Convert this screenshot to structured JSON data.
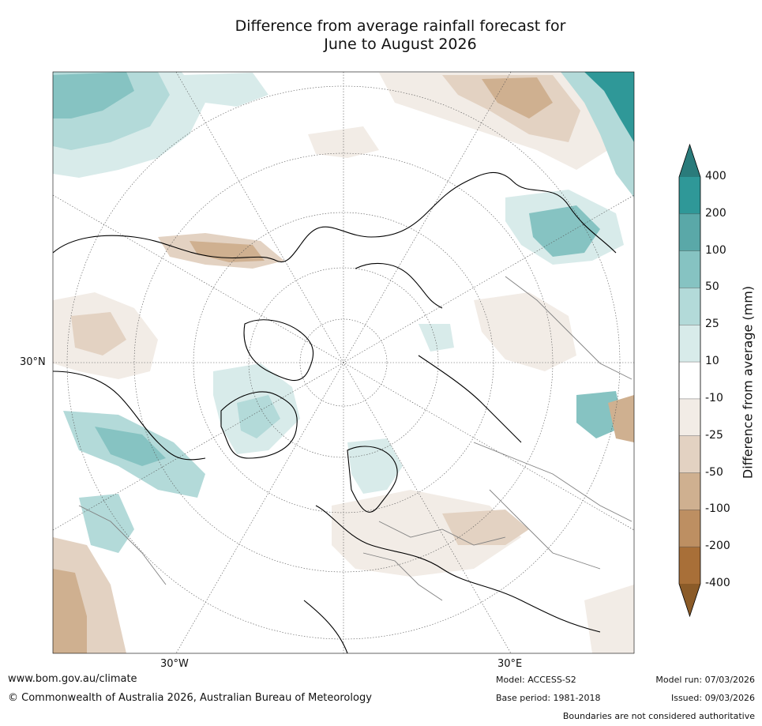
{
  "title_line1": "Difference from average rainfall forecast for",
  "title_line2": "June to August 2026",
  "latitude_labels": [
    "30°N"
  ],
  "longitude_labels": [
    "30°W",
    "30°E"
  ],
  "colorbar": {
    "title": "Difference from average (mm)",
    "tick_labels": [
      "400",
      "200",
      "100",
      "50",
      "25",
      "10",
      "-10",
      "-25",
      "-50",
      "-100",
      "-200",
      "-400"
    ],
    "colors": [
      "#2a7b7b",
      "#2f9898",
      "#5aa8a8",
      "#86c3c2",
      "#b3dad9",
      "#d8ebea",
      "#ffffff",
      "#f2ece6",
      "#e3d2c2",
      "#cfb090",
      "#bd8f62",
      "#a86f38",
      "#8b5b28"
    ]
  },
  "map_colors": {
    "water_high": "#2f9898",
    "water_mid": "#86c3c2",
    "water_low": "#b3dad9",
    "water_light": "#d8ebea",
    "dry_light": "#f2ece6",
    "dry_mid": "#e3d2c2",
    "dry_strong": "#cfb090",
    "coast": "#000000",
    "border": "#808080"
  },
  "footer": {
    "website": "www.bom.gov.au/climate",
    "copyright": "© Commonwealth of Australia 2026, Australian Bureau of Meteorology",
    "model": "Model: ACCESS-S2",
    "base_period": "Base period: 1981-2018",
    "model_run": "Model run: 07/03/2026",
    "issued": "Issued: 09/03/2026",
    "disclaimer": "Boundaries are not considered authoritative"
  }
}
